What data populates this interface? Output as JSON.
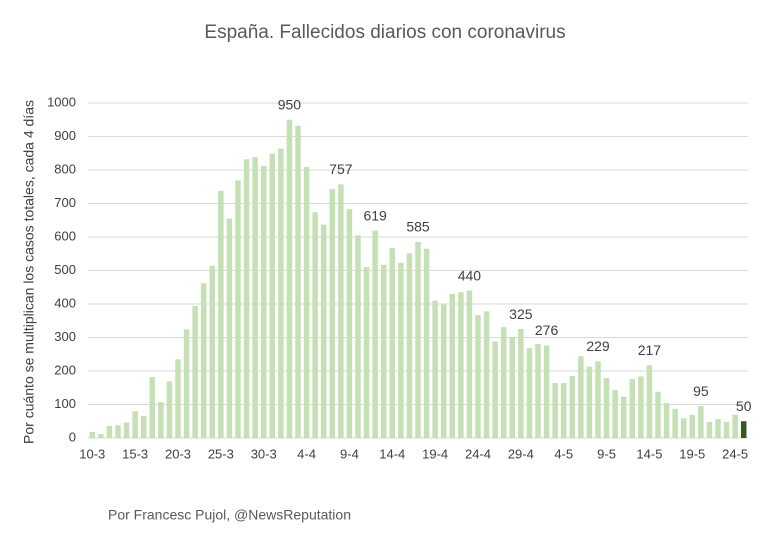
{
  "chart_data": {
    "type": "bar",
    "title": "España. Fallecidos diarios con coronavirus",
    "y_label": "Por cuánto se multiplican los casos totales, cada 4 días",
    "source": "Por Francesc Pujol, @NewsReputation",
    "categories": [
      "10-3",
      null,
      null,
      null,
      null,
      "15-3",
      null,
      null,
      null,
      null,
      "20-3",
      null,
      null,
      null,
      null,
      "25-3",
      null,
      null,
      null,
      null,
      "30-3",
      null,
      null,
      null,
      null,
      "4-4",
      null,
      null,
      null,
      null,
      "9-4",
      null,
      null,
      null,
      null,
      "14-4",
      null,
      null,
      null,
      null,
      "19-4",
      null,
      null,
      null,
      null,
      "24-4",
      null,
      null,
      null,
      null,
      "29-4",
      null,
      null,
      null,
      null,
      "4-5",
      null,
      null,
      null,
      null,
      "9-5",
      null,
      null,
      null,
      null,
      "14-5",
      null,
      null,
      null,
      null,
      "19-5",
      null,
      null,
      null,
      null,
      "24-5",
      null
    ],
    "values": [
      18,
      12,
      36,
      38,
      46,
      80,
      66,
      182,
      107,
      169,
      235,
      324,
      394,
      462,
      514,
      738,
      655,
      769,
      832,
      838,
      812,
      849,
      864,
      950,
      932,
      809,
      674,
      637,
      743,
      757,
      683,
      605,
      510,
      619,
      517,
      567,
      523,
      551,
      585,
      565,
      410,
      399,
      430,
      435,
      440,
      367,
      378,
      288,
      331,
      301,
      325,
      268,
      281,
      276,
      164,
      164,
      185,
      244,
      213,
      229,
      179,
      143,
      123,
      176,
      184,
      217,
      138,
      104,
      87,
      59,
      69,
      95,
      48,
      56,
      48,
      70,
      50
    ],
    "value_labels": [
      null,
      null,
      null,
      null,
      null,
      null,
      null,
      null,
      null,
      null,
      null,
      null,
      null,
      null,
      null,
      null,
      null,
      null,
      null,
      null,
      null,
      null,
      null,
      "950",
      null,
      null,
      null,
      null,
      null,
      "757",
      null,
      null,
      null,
      "619",
      null,
      null,
      null,
      null,
      "585",
      null,
      null,
      null,
      null,
      null,
      "440",
      null,
      null,
      null,
      null,
      null,
      "325",
      null,
      null,
      "276",
      null,
      null,
      null,
      null,
      null,
      "229",
      null,
      null,
      null,
      null,
      null,
      "217",
      null,
      null,
      null,
      null,
      null,
      "95",
      null,
      null,
      null,
      null,
      "50"
    ],
    "color": "#c5e0b4",
    "last_color": "#375623",
    "ylim": [
      0,
      1000
    ],
    "yticks": [
      0,
      100,
      200,
      300,
      400,
      500,
      600,
      700,
      800,
      900,
      1000
    ],
    "grid": true
  }
}
